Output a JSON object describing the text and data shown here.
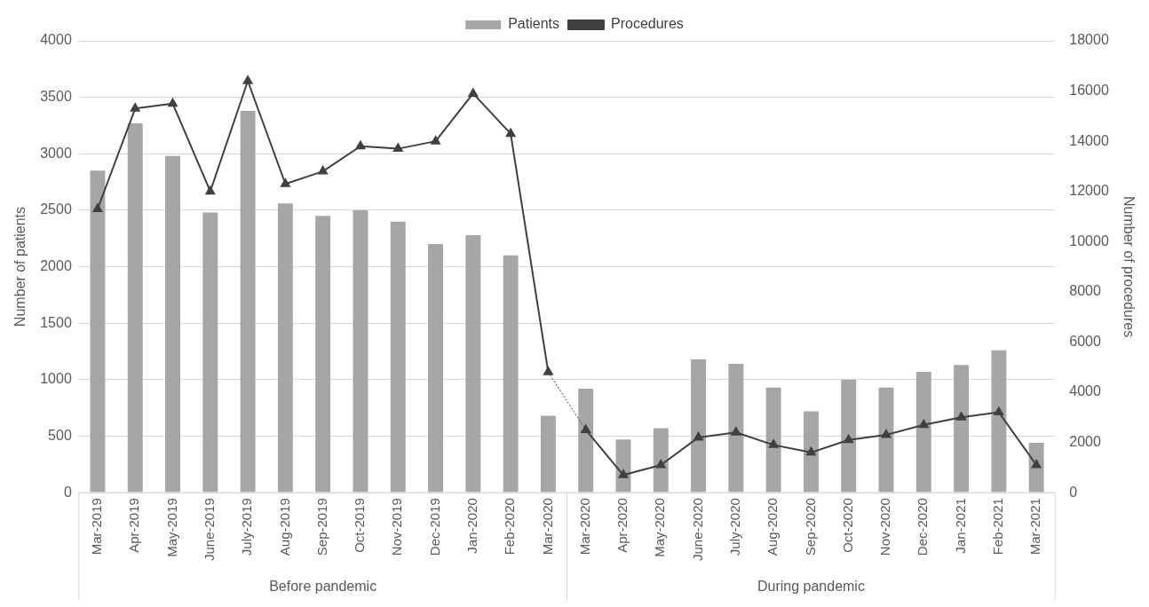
{
  "chart_data": {
    "type": "bar",
    "ylabel": "Number of patients",
    "y2label": "Number of procedures",
    "categories": [
      "Mar-2019",
      "Apr-2019",
      "May-2019",
      "June-2019",
      "July-2019",
      "Aug-2019",
      "Sep-2019",
      "Oct-2019",
      "Nov-2019",
      "Dec-2019",
      "Jan-2020",
      "Feb-2020",
      "Mar-2020",
      "Mar-2020",
      "Apr-2020",
      "May-2020",
      "June-2020",
      "July-2020",
      "Aug-2020",
      "Sep-2020",
      "Oct-2020",
      "Nov-2020",
      "Dec-2020",
      "Jan-2021",
      "Feb-2021",
      "Mar-2021"
    ],
    "series": [
      {
        "name": "Patients",
        "color": "#a6a6a6",
        "values": [
          2850,
          3270,
          2980,
          2480,
          3380,
          2560,
          2450,
          2500,
          2400,
          2200,
          2280,
          2100,
          680,
          920,
          470,
          570,
          1180,
          1140,
          930,
          720,
          1000,
          930,
          1070,
          1130,
          1260,
          440
        ]
      },
      {
        "name": "Procedures",
        "type": "line",
        "axis": "y2",
        "color": "#404040",
        "marker": "triangle",
        "values": [
          11300,
          15300,
          15500,
          12000,
          16400,
          12300,
          12800,
          13800,
          13700,
          14000,
          15900,
          14300,
          4800,
          2500,
          700,
          1100,
          2200,
          2400,
          1900,
          1600,
          2100,
          2300,
          2700,
          3000,
          3200,
          1100
        ]
      }
    ],
    "ylim": [
      0,
      4000
    ],
    "yticks": [
      0,
      500,
      1000,
      1500,
      2000,
      2500,
      3000,
      3500,
      4000
    ],
    "y2lim": [
      0,
      18000
    ],
    "y2ticks": [
      0,
      2000,
      4000,
      6000,
      8000,
      10000,
      12000,
      14000,
      16000,
      18000
    ],
    "grid": "y",
    "legend": "top",
    "annotations": [
      "Before pandemic",
      "During pandemic"
    ]
  }
}
